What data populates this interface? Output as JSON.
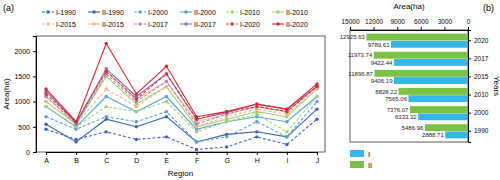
{
  "chart_data": [
    {
      "type": "line",
      "title": "(a)",
      "x_label": "Region",
      "y_label": "Area(ha)",
      "categories": [
        "A",
        "B",
        "C",
        "D",
        "E",
        "F",
        "G",
        "H",
        "I",
        "J"
      ],
      "ylim": [
        0,
        2300
      ],
      "yticks": [
        0,
        500,
        1000,
        1500,
        2000
      ],
      "marker": "circle",
      "legend": "upper center",
      "series": [
        {
          "name": "I-1990",
          "color": "#3b63b0",
          "line_style": "dashed",
          "values": [
            450,
            250,
            400,
            250,
            300,
            50,
            100,
            300,
            150,
            650
          ]
        },
        {
          "name": "II-1990",
          "color": "#3b63b0",
          "line_style": "solid",
          "values": [
            550,
            200,
            650,
            500,
            700,
            200,
            350,
            400,
            300,
            850
          ]
        },
        {
          "name": "I-2000",
          "color": "#4fa3d8",
          "line_style": "dashed",
          "values": [
            700,
            450,
            700,
            600,
            800,
            200,
            300,
            600,
            300,
            1000
          ]
        },
        {
          "name": "II-2000",
          "color": "#4fa3d8",
          "line_style": "solid",
          "values": [
            900,
            500,
            1100,
            800,
            1100,
            450,
            600,
            700,
            600,
            1100
          ]
        },
        {
          "name": "I-2010",
          "color": "#9fd36a",
          "line_style": "dashed",
          "values": [
            900,
            500,
            900,
            800,
            1000,
            400,
            600,
            750,
            400,
            1100
          ]
        },
        {
          "name": "II-2010",
          "color": "#9fd36a",
          "line_style": "solid",
          "values": [
            1000,
            550,
            1500,
            950,
            1300,
            500,
            650,
            800,
            700,
            1250
          ]
        },
        {
          "name": "I-2015",
          "color": "#f2b48a",
          "line_style": "dashed",
          "values": [
            1000,
            550,
            1250,
            900,
            1300,
            500,
            700,
            850,
            750,
            1250
          ]
        },
        {
          "name": "II-2015",
          "color": "#f2b48a",
          "line_style": "solid",
          "values": [
            1100,
            570,
            1600,
            1050,
            1400,
            600,
            750,
            900,
            800,
            1300
          ]
        },
        {
          "name": "I-2017",
          "color": "#b77fb8",
          "line_style": "dashed",
          "values": [
            1100,
            550,
            1550,
            1000,
            1400,
            550,
            750,
            900,
            800,
            1300
          ]
        },
        {
          "name": "II-2017",
          "color": "#7f6bbf",
          "line_style": "solid",
          "values": [
            1200,
            580,
            1650,
            1100,
            1550,
            650,
            780,
            950,
            850,
            1300
          ]
        },
        {
          "name": "I-2020",
          "color": "#e0312a",
          "line_style": "dashed",
          "values": [
            1150,
            600,
            1600,
            1050,
            1550,
            650,
            800,
            900,
            800,
            1300
          ]
        },
        {
          "name": "II-2020",
          "color": "#d7262b",
          "line_style": "solid",
          "values": [
            1250,
            600,
            2150,
            1150,
            1700,
            700,
            800,
            950,
            850,
            1350
          ]
        }
      ]
    },
    {
      "type": "bar",
      "title": "(b)",
      "x_label": "Area(ha)",
      "y_label": "Years",
      "orientation": "horizontal",
      "data_labels": true,
      "legend": "lower left",
      "categories": [
        "1990",
        "2000",
        "2010",
        "2015",
        "2017",
        "2020"
      ],
      "xlim": [
        0,
        15000
      ],
      "xticks": [
        0,
        3000,
        6000,
        9000,
        12000,
        15000
      ],
      "series": [
        {
          "name": "I",
          "color": "#35b6e6",
          "values": [
            2888.71,
            6333.32,
            7565.06,
            9406.19,
            9422.44,
            9789.61
          ]
        },
        {
          "name": "II",
          "color": "#7cc242",
          "values": [
            5486.96,
            7376.07,
            8828.22,
            11896.87,
            11973.74,
            12925.63
          ]
        }
      ]
    }
  ]
}
